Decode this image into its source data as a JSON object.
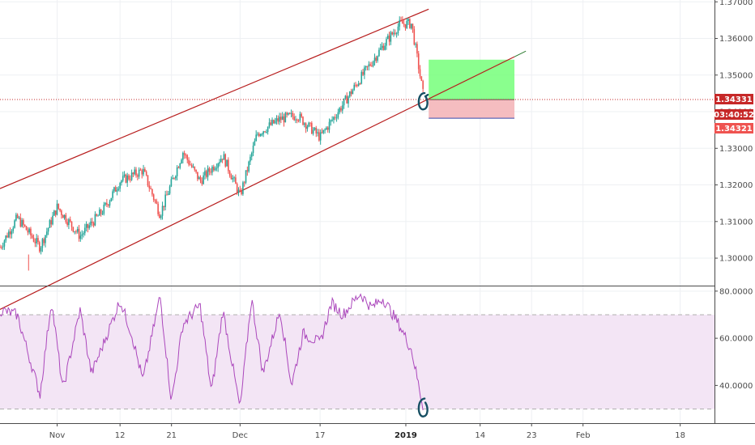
{
  "colors": {
    "up": "#26a69a",
    "down": "#ef5350",
    "channel": "#b71c1c",
    "rsi_line": "#ab47bc",
    "rsi_band": "#f3e5f5",
    "target_zone": "#76ff7a",
    "stop_zone": "#f4b6b9",
    "grid": "#eef0f3",
    "annotation": "#174f63",
    "price_line": "#c62828"
  },
  "price_badges": {
    "current_price": "1.34331",
    "countdown": "03:40:52",
    "bid_price": "1.34321"
  },
  "chart_data": [
    {
      "type": "candlestick",
      "ylim": [
        1.2925,
        1.3705
      ],
      "y_ticks": [
        "1.37000",
        "1.36000",
        "1.35000",
        "1.34000",
        "1.33000",
        "1.32000",
        "1.31000",
        "1.30000"
      ],
      "y_tick_values": [
        1.37,
        1.36,
        1.35,
        1.34,
        1.33,
        1.32,
        1.31,
        1.3
      ],
      "x_ticks": [
        "Nov",
        "12",
        "21",
        "Dec",
        "17",
        "2019",
        "14",
        "23",
        "Feb",
        "18"
      ],
      "x_axis_range": [
        "2018-10-22",
        "2019-02-24"
      ],
      "series": [
        {
          "type": "close_path",
          "date": [
            "2018-10-22",
            "2018-10-25",
            "2018-10-29",
            "2018-11-01",
            "2018-11-05",
            "2018-11-09",
            "2018-11-12",
            "2018-11-16",
            "2018-11-19",
            "2018-11-23",
            "2018-11-26",
            "2018-11-30",
            "2018-12-03",
            "2018-12-06",
            "2018-12-10",
            "2018-12-13",
            "2018-12-17",
            "2018-12-21",
            "2018-12-24",
            "2018-12-28",
            "2018-12-31",
            "2019-01-02",
            "2019-01-04"
          ],
          "value": [
            1.303,
            1.311,
            1.303,
            1.314,
            1.306,
            1.313,
            1.321,
            1.324,
            1.312,
            1.329,
            1.321,
            1.328,
            1.317,
            1.334,
            1.338,
            1.339,
            1.333,
            1.342,
            1.349,
            1.358,
            1.364,
            1.364,
            1.345
          ]
        }
      ],
      "channel_lines": [
        {
          "name": "upper",
          "start": [
            "2018-10-22",
            1.319
          ],
          "end": [
            "2019-01-05",
            1.368
          ]
        },
        {
          "name": "lower",
          "start": [
            "2018-10-22",
            1.286
          ],
          "end": [
            "2019-01-20",
            1.355
          ]
        }
      ],
      "position_tool": {
        "entry_date": "2019-01-05",
        "exit_date": "2019-01-20",
        "entry_price": 1.3433,
        "target_price": 1.3542,
        "stop_price": 1.3382
      },
      "price_line": 1.34331
    },
    {
      "type": "line",
      "ylim": [
        24.0,
        82.0
      ],
      "y_ticks": [
        "80.0000",
        "60.0000",
        "40.0000"
      ],
      "y_tick_values": [
        80,
        60,
        40
      ],
      "band": [
        30,
        70
      ],
      "x_axis_range": [
        "2018-10-22",
        "2019-02-24"
      ],
      "series": [
        {
          "date": [
            "2018-10-22",
            "2018-10-25",
            "2018-10-29",
            "2018-10-31",
            "2018-11-02",
            "2018-11-05",
            "2018-11-07",
            "2018-11-09",
            "2018-11-12",
            "2018-11-14",
            "2018-11-16",
            "2018-11-19",
            "2018-11-21",
            "2018-11-23",
            "2018-11-26",
            "2018-11-28",
            "2018-11-30",
            "2018-12-03",
            "2018-12-05",
            "2018-12-07",
            "2018-12-10",
            "2018-12-12",
            "2018-12-14",
            "2018-12-17",
            "2018-12-19",
            "2018-12-21",
            "2018-12-24",
            "2018-12-26",
            "2018-12-28",
            "2018-12-31",
            "2019-01-02",
            "2019-01-04"
          ],
          "value": [
            72,
            70,
            36,
            76,
            38,
            72,
            45,
            57,
            76,
            62,
            42,
            78,
            33,
            66,
            74,
            37,
            72,
            30,
            77,
            45,
            72,
            40,
            62,
            58,
            75,
            70,
            79,
            73,
            77,
            65,
            55,
            31
          ]
        }
      ]
    }
  ]
}
